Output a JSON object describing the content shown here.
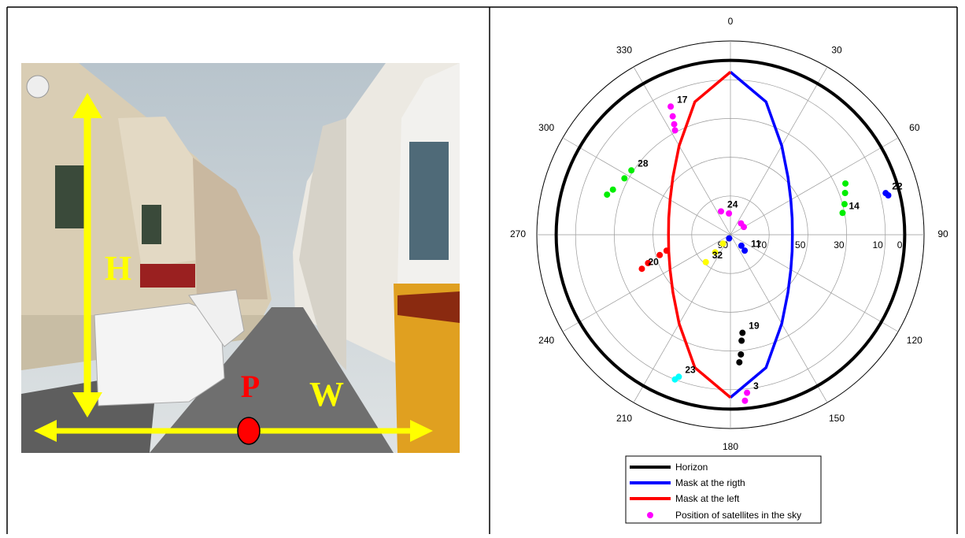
{
  "photo": {
    "labels": {
      "h": "H",
      "p": "P",
      "w": "W"
    }
  },
  "chart_data": {
    "type": "polar",
    "xlim": [
      0,
      360
    ],
    "xticks": [
      0,
      30,
      60,
      90,
      120,
      150,
      180,
      210,
      240,
      270,
      300,
      330
    ],
    "ylim": [
      90,
      -10
    ],
    "yticks": [
      90,
      70,
      50,
      30,
      10,
      0
    ],
    "grid": true,
    "series": [
      {
        "name": "Horizon",
        "color": "#000000",
        "values": [
          0
        ]
      },
      {
        "name": "Mask at the rigth",
        "color": "#0000ff",
        "azimuth": [
          0,
          15,
          30,
          45,
          60,
          75,
          90,
          105,
          120,
          135,
          150,
          165,
          180
        ],
        "values": [
          6,
          19,
          37,
          48,
          54,
          57,
          58,
          57,
          54,
          48,
          37,
          19,
          6
        ]
      },
      {
        "name": "Mask at the left",
        "color": "#ff0000",
        "azimuth": [
          180,
          195,
          210,
          225,
          240,
          255,
          270,
          285,
          300,
          315,
          330,
          345,
          360
        ],
        "values": [
          6,
          19,
          37,
          48,
          54,
          57,
          58,
          57,
          54,
          48,
          37,
          19,
          6
        ]
      }
    ],
    "satellite_legend": {
      "name": "Position of satellites in the sky",
      "color": "#ff00ff"
    },
    "satellites": [
      {
        "label": "17",
        "color": "#ff00ff",
        "azimuth": [
          335,
          334,
          333,
          332
        ],
        "values": [
          17,
          22,
          26,
          29
        ]
      },
      {
        "label": "28",
        "color": "#00ee00",
        "azimuth": [
          303,
          298,
          291,
          288
        ],
        "values": [
          29,
          28,
          25,
          23
        ]
      },
      {
        "label": "14",
        "color": "#00ee00",
        "azimuth": [
          79,
          75,
          70,
          66
        ],
        "values": [
          31,
          29,
          27,
          25
        ]
      },
      {
        "label": "22",
        "color": "#0000ff",
        "azimuth": [
          75,
          76
        ],
        "values": [
          7,
          6
        ]
      },
      {
        "label": "24",
        "color": "#ff00ff",
        "azimuth": [
          338,
          356,
          43,
          60
        ],
        "values": [
          77,
          79,
          82,
          82
        ]
      },
      {
        "label": "11",
        "color": "#0000ff",
        "azimuth": [
          138,
          135,
          200
        ],
        "values": [
          79,
          82,
          88
        ]
      },
      {
        "label": "32",
        "color": "#ffff00",
        "azimuth": [
          222,
          221,
          220
        ],
        "values": [
          71,
          78,
          84
        ]
      },
      {
        "label": "20",
        "color": "#ff0000",
        "azimuth": [
          249,
          251,
          254,
          256
        ],
        "values": [
          41,
          45,
          52,
          56
        ]
      },
      {
        "label": "19",
        "color": "#000000",
        "azimuth": [
          173,
          174,
          175,
          176
        ],
        "values": [
          39,
          35,
          28,
          24
        ]
      },
      {
        "label": "3",
        "color": "#ff00ff",
        "azimuth": [
          174,
          175
        ],
        "values": [
          8,
          4
        ]
      },
      {
        "label": "23",
        "color": "#00ffff",
        "azimuth": [
          200,
          201
        ],
        "values": [
          12,
          10
        ]
      }
    ]
  }
}
